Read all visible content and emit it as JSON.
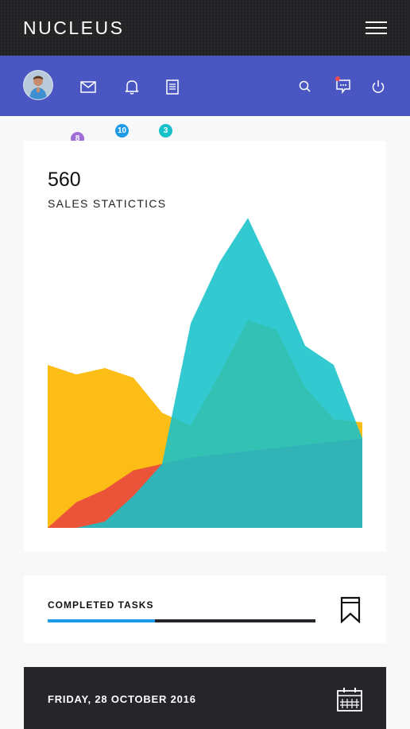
{
  "header": {
    "brand": "NUCLEUS",
    "menu_icon": "hamburger-icon"
  },
  "navbar": {
    "background": "#4a56c2",
    "avatar_icon": "user-avatar",
    "left_icons": [
      {
        "name": "mail-icon",
        "badge": "8",
        "badge_color": "#a06cd5"
      },
      {
        "name": "bell-icon",
        "badge": "10",
        "badge_color": "#1d9be6"
      },
      {
        "name": "document-icon",
        "badge": "3",
        "badge_color": "#17c1c9"
      }
    ],
    "right_icons": [
      {
        "name": "search-icon"
      },
      {
        "name": "chat-icon",
        "dot_color": "#e94b53"
      },
      {
        "name": "power-icon"
      }
    ]
  },
  "sales": {
    "value": "560",
    "label": "SALES STATICTICS"
  },
  "chart_data": {
    "type": "area",
    "title": "",
    "x": [
      0,
      1,
      2,
      3,
      4,
      5,
      6,
      7,
      8,
      9,
      10,
      11
    ],
    "xlim": [
      0,
      11
    ],
    "ylim": [
      0,
      100
    ],
    "grid": false,
    "legend": "none",
    "series": [
      {
        "color": "#fcbe16",
        "values": [
          51,
          48,
          50,
          47,
          36,
          32,
          48,
          65,
          62,
          44,
          34,
          33
        ]
      },
      {
        "color": "#e8453f",
        "values": [
          0,
          8,
          12,
          18,
          20,
          22,
          23,
          24,
          25,
          26,
          27,
          28
        ]
      },
      {
        "color": "#17c1c9",
        "values": [
          0,
          0,
          2,
          10,
          20,
          64,
          83,
          97,
          78,
          57,
          51,
          28
        ]
      }
    ]
  },
  "tasks": {
    "label": "COMPLETED TASKS",
    "progress": 0.4,
    "track_color": "#25252a",
    "fill_color": "#1d9be6",
    "icon": "bookmark-icon"
  },
  "calendar": {
    "date": "FRIDAY, 28 OCTOBER 2016",
    "icon": "calendar-icon"
  }
}
